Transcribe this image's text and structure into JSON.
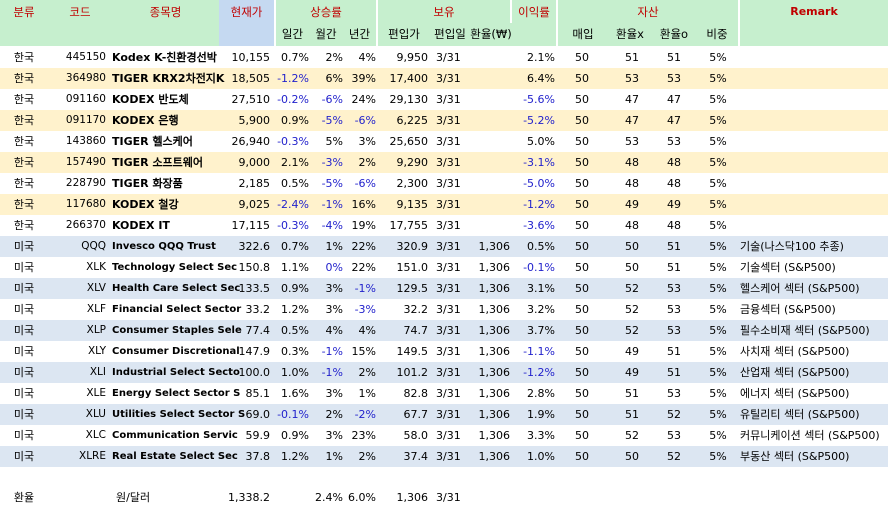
{
  "header": {
    "top": {
      "cat": "분류",
      "code": "코드",
      "name": "종목명",
      "price": "현재가",
      "change": "상승률",
      "hold": "보유",
      "ret": "이익률",
      "asset": "자산",
      "remark": "Remark"
    },
    "sub": {
      "daily": "일간",
      "monthly": "월간",
      "yearly": "년간",
      "avg": "편입가",
      "date": "편입일",
      "fx": "환율(₩)",
      "buy": "매입",
      "fxa": "환율x",
      "fxb": "환율o",
      "weight": "비중"
    },
    "colors": {
      "green": "#c6efce",
      "blue": "#c5d9f1",
      "red_text": "#c00000"
    }
  },
  "rows": [
    {
      "cat": "한국",
      "code": "445150",
      "name": "Kodex K-친환경선박",
      "price": "10,155",
      "d": "0.7%",
      "m": "2%",
      "y": "4%",
      "avg": "9,950",
      "date": "3/31",
      "fx": "",
      "ret": "2.1%",
      "buy": "50",
      "fxa": "51",
      "fxb": "51",
      "wt": "5%",
      "remark": "",
      "m_neg": false,
      "d_neg": false,
      "y_neg": false,
      "ret_neg": false
    },
    {
      "cat": "한국",
      "code": "364980",
      "name": "TIGER KRX2차전지K",
      "price": "18,505",
      "d": "-1.2%",
      "m": "6%",
      "y": "39%",
      "avg": "17,400",
      "date": "3/31",
      "fx": "",
      "ret": "6.4%",
      "buy": "50",
      "fxa": "53",
      "fxb": "53",
      "wt": "5%",
      "remark": "",
      "d_neg": true
    },
    {
      "cat": "한국",
      "code": "091160",
      "name": "KODEX 반도체",
      "price": "27,510",
      "d": "-0.2%",
      "m": "-6%",
      "y": "24%",
      "avg": "29,130",
      "date": "3/31",
      "fx": "",
      "ret": "-5.6%",
      "buy": "50",
      "fxa": "47",
      "fxb": "47",
      "wt": "5%",
      "remark": "",
      "d_neg": true,
      "m_neg": true,
      "ret_neg": true
    },
    {
      "cat": "한국",
      "code": "091170",
      "name": "KODEX 은행",
      "price": "5,900",
      "d": "0.9%",
      "m": "-5%",
      "y": "-6%",
      "avg": "6,225",
      "date": "3/31",
      "fx": "",
      "ret": "-5.2%",
      "buy": "50",
      "fxa": "47",
      "fxb": "47",
      "wt": "5%",
      "remark": "",
      "m_neg": true,
      "y_neg": true,
      "ret_neg": true
    },
    {
      "cat": "한국",
      "code": "143860",
      "name": "TIGER 헬스케어",
      "price": "26,940",
      "d": "-0.3%",
      "m": "5%",
      "y": "3%",
      "avg": "25,650",
      "date": "3/31",
      "fx": "",
      "ret": "5.0%",
      "buy": "50",
      "fxa": "53",
      "fxb": "53",
      "wt": "5%",
      "remark": "",
      "d_neg": true
    },
    {
      "cat": "한국",
      "code": "157490",
      "name": "TIGER 소프트웨어",
      "price": "9,000",
      "d": "2.1%",
      "m": "-3%",
      "y": "2%",
      "avg": "9,290",
      "date": "3/31",
      "fx": "",
      "ret": "-3.1%",
      "buy": "50",
      "fxa": "48",
      "fxb": "48",
      "wt": "5%",
      "remark": "",
      "m_neg": true,
      "ret_neg": true
    },
    {
      "cat": "한국",
      "code": "228790",
      "name": "TIGER 화장품",
      "price": "2,185",
      "d": "0.5%",
      "m": "-5%",
      "y": "-6%",
      "avg": "2,300",
      "date": "3/31",
      "fx": "",
      "ret": "-5.0%",
      "buy": "50",
      "fxa": "48",
      "fxb": "48",
      "wt": "5%",
      "remark": "",
      "m_neg": true,
      "y_neg": true,
      "ret_neg": true
    },
    {
      "cat": "한국",
      "code": "117680",
      "name": "KODEX 철강",
      "price": "9,025",
      "d": "-2.4%",
      "m": "-1%",
      "y": "16%",
      "avg": "9,135",
      "date": "3/31",
      "fx": "",
      "ret": "-1.2%",
      "buy": "50",
      "fxa": "49",
      "fxb": "49",
      "wt": "5%",
      "remark": "",
      "d_neg": true,
      "m_neg": true,
      "ret_neg": true
    },
    {
      "cat": "한국",
      "code": "266370",
      "name": "KODEX IT",
      "price": "17,115",
      "d": "-0.3%",
      "m": "-4%",
      "y": "19%",
      "avg": "17,755",
      "date": "3/31",
      "fx": "",
      "ret": "-3.6%",
      "buy": "50",
      "fxa": "48",
      "fxb": "48",
      "wt": "5%",
      "remark": "",
      "d_neg": true,
      "m_neg": true,
      "ret_neg": true
    },
    {
      "cat": "미국",
      "code": "QQQ",
      "name": "Invesco QQQ Trust",
      "price": "322.6",
      "d": "0.7%",
      "m": "1%",
      "y": "22%",
      "avg": "320.9",
      "date": "3/31",
      "fx": "1,306",
      "ret": "0.5%",
      "buy": "50",
      "fxa": "50",
      "fxb": "51",
      "wt": "5%",
      "remark": "기술(나스닥100 추종)"
    },
    {
      "cat": "미국",
      "code": "XLK",
      "name": "Technology Select Sec",
      "price": "150.8",
      "d": "1.1%",
      "m": "0%",
      "y": "22%",
      "avg": "151.0",
      "date": "3/31",
      "fx": "1,306",
      "ret": "-0.1%",
      "buy": "50",
      "fxa": "50",
      "fxb": "51",
      "wt": "5%",
      "remark": "기술섹터 (S&P500)",
      "m_neg": true,
      "ret_neg": true
    },
    {
      "cat": "미국",
      "code": "XLV",
      "name": "Health Care Select Sec",
      "price": "133.5",
      "d": "0.9%",
      "m": "3%",
      "y": "-1%",
      "avg": "129.5",
      "date": "3/31",
      "fx": "1,306",
      "ret": "3.1%",
      "buy": "50",
      "fxa": "52",
      "fxb": "53",
      "wt": "5%",
      "remark": "헬스케어 섹터 (S&P500)",
      "y_neg": true
    },
    {
      "cat": "미국",
      "code": "XLF",
      "name": "Financial Select Sector",
      "price": "33.2",
      "d": "1.2%",
      "m": "3%",
      "y": "-3%",
      "avg": "32.2",
      "date": "3/31",
      "fx": "1,306",
      "ret": "3.2%",
      "buy": "50",
      "fxa": "52",
      "fxb": "53",
      "wt": "5%",
      "remark": "금융섹터 (S&P500)",
      "y_neg": true
    },
    {
      "cat": "미국",
      "code": "XLP",
      "name": "Consumer Staples Sele",
      "price": "77.4",
      "d": "0.5%",
      "m": "4%",
      "y": "4%",
      "avg": "74.7",
      "date": "3/31",
      "fx": "1,306",
      "ret": "3.7%",
      "buy": "50",
      "fxa": "52",
      "fxb": "53",
      "wt": "5%",
      "remark": "필수소비재 섹터 (S&P500)"
    },
    {
      "cat": "미국",
      "code": "XLY",
      "name": "Consumer Discretional",
      "price": "147.9",
      "d": "0.3%",
      "m": "-1%",
      "y": "15%",
      "avg": "149.5",
      "date": "3/31",
      "fx": "1,306",
      "ret": "-1.1%",
      "buy": "50",
      "fxa": "49",
      "fxb": "51",
      "wt": "5%",
      "remark": "사치재 섹터 (S&P500)",
      "m_neg": true,
      "ret_neg": true
    },
    {
      "cat": "미국",
      "code": "XLI",
      "name": "Industrial Select Secto",
      "price": "100.0",
      "d": "1.0%",
      "m": "-1%",
      "y": "2%",
      "avg": "101.2",
      "date": "3/31",
      "fx": "1,306",
      "ret": "-1.2%",
      "buy": "50",
      "fxa": "49",
      "fxb": "51",
      "wt": "5%",
      "remark": "산업재 섹터 (S&P500)",
      "m_neg": true,
      "ret_neg": true
    },
    {
      "cat": "미국",
      "code": "XLE",
      "name": "Energy Select Sector S",
      "price": "85.1",
      "d": "1.6%",
      "m": "3%",
      "y": "1%",
      "avg": "82.8",
      "date": "3/31",
      "fx": "1,306",
      "ret": "2.8%",
      "buy": "50",
      "fxa": "51",
      "fxb": "53",
      "wt": "5%",
      "remark": "에너지 섹터 (S&P500)"
    },
    {
      "cat": "미국",
      "code": "XLU",
      "name": "Utilities Select Sector S",
      "price": "69.0",
      "d": "-0.1%",
      "m": "2%",
      "y": "-2%",
      "avg": "67.7",
      "date": "3/31",
      "fx": "1,306",
      "ret": "1.9%",
      "buy": "50",
      "fxa": "51",
      "fxb": "52",
      "wt": "5%",
      "remark": "유틸리티 섹터 (S&P500)",
      "d_neg": true,
      "y_neg": true
    },
    {
      "cat": "미국",
      "code": "XLC",
      "name": "Communication Servic",
      "price": "59.9",
      "d": "0.9%",
      "m": "3%",
      "y": "23%",
      "avg": "58.0",
      "date": "3/31",
      "fx": "1,306",
      "ret": "3.3%",
      "buy": "50",
      "fxa": "52",
      "fxb": "53",
      "wt": "5%",
      "remark": "커뮤니케이션 섹터 (S&P500)"
    },
    {
      "cat": "미국",
      "code": "XLRE",
      "name": "Real Estate Select Sec",
      "price": "37.8",
      "d": "1.2%",
      "m": "1%",
      "y": "2%",
      "avg": "37.4",
      "date": "3/31",
      "fx": "1,306",
      "ret": "1.0%",
      "buy": "50",
      "fxa": "50",
      "fxb": "52",
      "wt": "5%",
      "remark": "부동산 섹터 (S&P500)"
    }
  ],
  "footer": {
    "cat": "환율",
    "name": "원/달러",
    "price": "1,338.2",
    "m": "2.4%",
    "y": "6.0%",
    "avg": "1,306",
    "date": "3/31"
  }
}
